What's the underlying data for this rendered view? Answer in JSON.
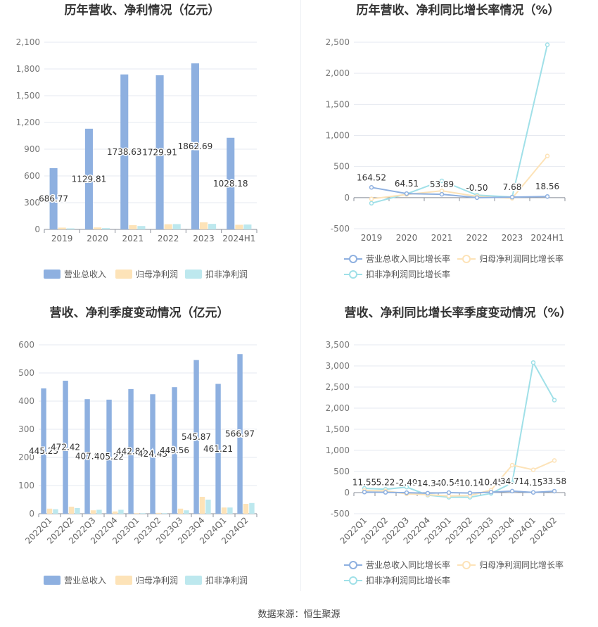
{
  "source": "数据来源：恒生聚源",
  "chart_data": [
    {
      "type": "bar",
      "title": "历年营收、净利情况（亿元）",
      "categories": [
        "2019",
        "2020",
        "2021",
        "2022",
        "2023",
        "2024H1"
      ],
      "ylim": [
        0,
        2100
      ],
      "yticks": [
        0,
        300,
        600,
        900,
        1200,
        1500,
        1800,
        2100
      ],
      "ytick_labels": [
        "0",
        "300",
        "600",
        "900",
        "1,200",
        "1,500",
        "1,800",
        "2,100"
      ],
      "grid": true,
      "legend_position": "bottom",
      "series": [
        {
          "name": "营业总收入",
          "values": [
            686.77,
            1129.81,
            1738.63,
            1729.91,
            1862.69,
            1028.18
          ],
          "labels": [
            "686.77",
            "1129.81",
            "1738.63",
            "1729.91",
            "1862.69",
            "1028.18"
          ],
          "color": "#8eb0e0"
        },
        {
          "name": "归母净利润",
          "values": [
            20,
            22,
            48,
            58,
            80,
            52
          ],
          "color": "#fde3b8"
        },
        {
          "name": "扣非净利润",
          "values": [
            12,
            15,
            38,
            60,
            62,
            55
          ],
          "color": "#bde8ee"
        }
      ]
    },
    {
      "type": "line",
      "title": "历年营收、净利同比增长率情况（%）",
      "categories": [
        "2019",
        "2020",
        "2021",
        "2022",
        "2023",
        "2024H1"
      ],
      "ylim": [
        -500,
        2500
      ],
      "yticks": [
        -500,
        0,
        500,
        1000,
        1500,
        2000,
        2500
      ],
      "ytick_labels": [
        "-500",
        "0",
        "500",
        "1,000",
        "1,500",
        "2,000",
        "2,500"
      ],
      "grid": true,
      "legend_position": "bottom",
      "series": [
        {
          "name": "营业总收入同比增长率",
          "values": [
            164.52,
            64.51,
            53.89,
            -0.5,
            7.68,
            18.56
          ],
          "labels": [
            "164.52",
            "64.51",
            "53.89",
            "-0.50",
            "7.68",
            "18.56"
          ],
          "color": "#8eb0e0"
        },
        {
          "name": "归母净利润同比增长率",
          "values": [
            -20,
            50,
            110,
            20,
            -10,
            670
          ],
          "color": "#fde3b8"
        },
        {
          "name": "扣非净利润同比增长率",
          "values": [
            -90,
            60,
            270,
            40,
            10,
            2460
          ],
          "color": "#a0e0e8"
        }
      ]
    },
    {
      "type": "bar",
      "title": "营收、净利季度变动情况（亿元）",
      "categories": [
        "2022Q1",
        "2022Q2",
        "2022Q3",
        "2022Q4",
        "2023Q1",
        "2023Q2",
        "2023Q3",
        "2023Q4",
        "2024Q1",
        "2024Q2"
      ],
      "ylim": [
        0,
        600
      ],
      "yticks": [
        0,
        100,
        200,
        300,
        400,
        500,
        600
      ],
      "ytick_labels": [
        "0",
        "100",
        "200",
        "300",
        "400",
        "500",
        "600"
      ],
      "grid": true,
      "legend_position": "bottom",
      "series": [
        {
          "name": "营业总收入",
          "values": [
            445.25,
            472.42,
            407.0,
            405.22,
            442.84,
            424.43,
            449.56,
            545.87,
            461.21,
            566.97
          ],
          "labels": [
            "445.25",
            "472.42",
            "407.0",
            "405.22",
            "442.84",
            "424.43",
            "449.56",
            "545.87",
            "461.21",
            "566.97"
          ],
          "color": "#8eb0e0"
        },
        {
          "name": "归母净利润",
          "values": [
            18,
            25,
            12,
            8,
            2,
            3,
            18,
            60,
            22,
            35
          ],
          "color": "#fde3b8"
        },
        {
          "name": "扣非净利润",
          "values": [
            16,
            20,
            14,
            14,
            2,
            2,
            12,
            50,
            22,
            38
          ],
          "color": "#bde8ee"
        }
      ]
    },
    {
      "type": "line",
      "title": "营收、净利同比增长率季度变动情况（%）",
      "categories": [
        "2022Q1",
        "2022Q2",
        "2022Q3",
        "2022Q4",
        "2023Q1",
        "2023Q2",
        "2023Q3",
        "2023Q4",
        "2024Q1",
        "2024Q2"
      ],
      "ylim": [
        -500,
        3500
      ],
      "yticks": [
        -500,
        0,
        500,
        1000,
        1500,
        2000,
        2500,
        3000,
        3500
      ],
      "ytick_labels": [
        "-500",
        "0",
        "500",
        "1,000",
        "1,500",
        "2,000",
        "2,500",
        "3,000",
        "3,500"
      ],
      "grid": true,
      "legend_position": "bottom",
      "series": [
        {
          "name": "营业总收入同比增长率",
          "values": [
            11.55,
            5.22,
            -2.49,
            -14.34,
            -0.54,
            -10.16,
            10.45,
            34.71,
            4.15,
            33.58
          ],
          "labels": [
            "11.55",
            "5.22",
            "-2.49",
            "-14.34",
            "-0.54",
            "-10.16",
            "10.45",
            "34.71",
            "4.15",
            "33.58"
          ],
          "color": "#8eb0e0"
        },
        {
          "name": "归母净利润同比增长率",
          "values": [
            50,
            40,
            -30,
            -50,
            -80,
            -70,
            60,
            650,
            540,
            760
          ],
          "color": "#fde3b8"
        },
        {
          "name": "扣非净利润同比增长率",
          "values": [
            100,
            80,
            130,
            -60,
            -110,
            -110,
            -20,
            230,
            3080,
            2190
          ],
          "color": "#a0e0e8"
        }
      ]
    }
  ]
}
